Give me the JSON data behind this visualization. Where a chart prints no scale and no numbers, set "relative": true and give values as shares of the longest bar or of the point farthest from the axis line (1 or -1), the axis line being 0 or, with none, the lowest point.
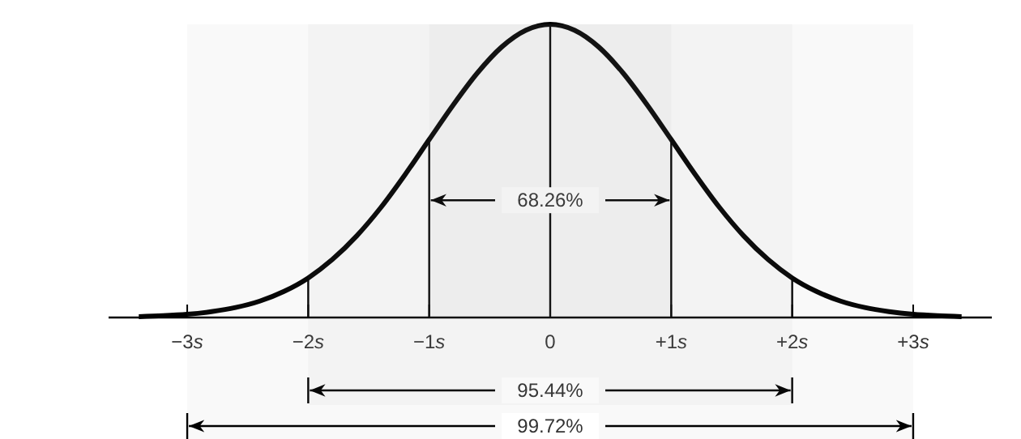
{
  "chart_data": {
    "type": "line",
    "relative": true,
    "color": "#000000",
    "x": [
      -3.4,
      -3.2,
      -3.0,
      -2.8,
      -2.6,
      -2.4,
      -2.2,
      -2.0,
      -1.8,
      -1.6,
      -1.4,
      -1.2,
      -1.0,
      -0.8,
      -0.6,
      -0.4,
      -0.2,
      0,
      0.2,
      0.4,
      0.6,
      0.8,
      1.0,
      1.2,
      1.4,
      1.6,
      1.8,
      2.0,
      2.2,
      2.4,
      2.6,
      2.8,
      3.0,
      3.2,
      3.4
    ],
    "values": [
      0.003,
      0.006,
      0.011,
      0.02,
      0.034,
      0.056,
      0.089,
      0.135,
      0.198,
      0.278,
      0.375,
      0.487,
      0.607,
      0.726,
      0.835,
      0.923,
      0.98,
      1,
      0.98,
      0.923,
      0.835,
      0.726,
      0.607,
      0.487,
      0.375,
      0.278,
      0.198,
      0.135,
      0.089,
      0.056,
      0.034,
      0.02,
      0.011,
      0.006,
      0.003
    ],
    "xlim": [
      -3.65,
      3.65
    ],
    "xticks": [
      {
        "value": -3,
        "label": "−3s"
      },
      {
        "value": -2,
        "label": "−2s"
      },
      {
        "value": -1,
        "label": "−1s"
      },
      0,
      {
        "value": 1,
        "label": "+1s"
      },
      {
        "value": 2,
        "label": "+2s"
      },
      {
        "value": 3,
        "label": "+3s"
      }
    ],
    "tick_labels": "x",
    "ref_lines": [
      {
        "axis": "x",
        "value": -2
      },
      {
        "axis": "x",
        "value": -1
      },
      {
        "axis": "x",
        "value": 0
      },
      {
        "axis": "x",
        "value": 1
      },
      {
        "axis": "x",
        "value": 2
      }
    ],
    "bands": [
      {
        "axis": "x",
        "from": -1,
        "to": 1,
        "label": "68.26%"
      },
      {
        "axis": "x",
        "from": -2,
        "to": 2,
        "label": "95.44%"
      },
      {
        "axis": "x",
        "from": -3,
        "to": 3,
        "label": "99.72%"
      }
    ],
    "grid": false,
    "legend": false,
    "marker": "none",
    "line_style": "solid"
  }
}
